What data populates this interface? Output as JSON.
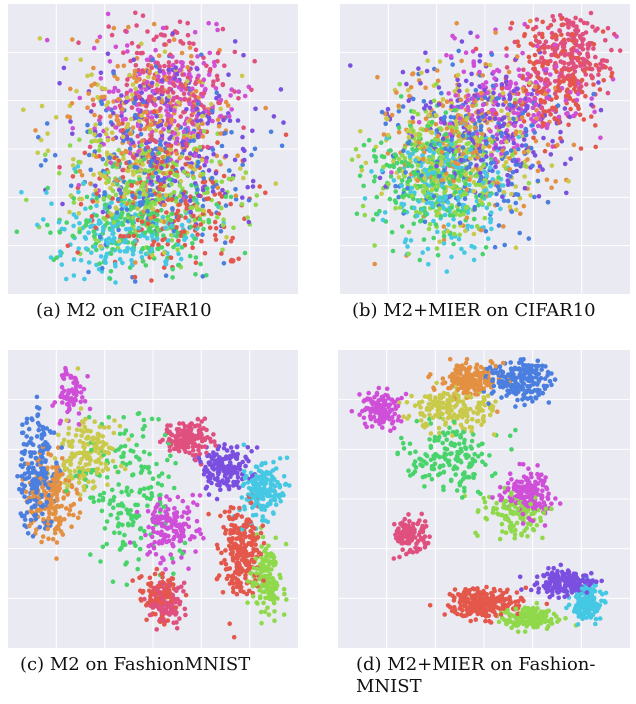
{
  "figure": {
    "background_panel_color": "#eaeaf2",
    "palette": [
      "#e4574b",
      "#e39042",
      "#c9c94a",
      "#8fd94a",
      "#48d46a",
      "#46d6b0",
      "#44c8e3",
      "#4a7fe0",
      "#7b4fe0",
      "#cf4fd8",
      "#e0507e"
    ]
  },
  "captions": {
    "a": "(a) M2 on CIFAR10",
    "b": "(b) M2+MIER on CIFAR10",
    "c": "(c) M2 on FashionMNIST",
    "d": "(d) M2+MIER on Fashion-\nMNIST"
  },
  "chart_data": [
    {
      "type": "scatter",
      "title": "",
      "xlabel": "",
      "ylabel": "",
      "grid": true,
      "legend": "none",
      "point_count_estimate": 2000,
      "clusters": [
        {
          "color_index": 0,
          "center": [
            0.55,
            0.7
          ],
          "spread": [
            0.3,
            0.25
          ],
          "weight": 1
        },
        {
          "color_index": 1,
          "center": [
            0.5,
            0.4
          ],
          "spread": [
            0.28,
            0.3
          ],
          "weight": 1
        },
        {
          "color_index": 2,
          "center": [
            0.45,
            0.5
          ],
          "spread": [
            0.3,
            0.3
          ],
          "weight": 1
        },
        {
          "color_index": 3,
          "center": [
            0.5,
            0.65
          ],
          "spread": [
            0.3,
            0.22
          ],
          "weight": 1
        },
        {
          "color_index": 4,
          "center": [
            0.45,
            0.75
          ],
          "spread": [
            0.28,
            0.18
          ],
          "weight": 1
        },
        {
          "color_index": 6,
          "center": [
            0.4,
            0.78
          ],
          "spread": [
            0.25,
            0.15
          ],
          "weight": 1
        },
        {
          "color_index": 7,
          "center": [
            0.5,
            0.55
          ],
          "spread": [
            0.3,
            0.3
          ],
          "weight": 1
        },
        {
          "color_index": 8,
          "center": [
            0.55,
            0.45
          ],
          "spread": [
            0.28,
            0.3
          ],
          "weight": 1
        },
        {
          "color_index": 9,
          "center": [
            0.55,
            0.35
          ],
          "spread": [
            0.25,
            0.3
          ],
          "weight": 1
        },
        {
          "color_index": 10,
          "center": [
            0.55,
            0.3
          ],
          "spread": [
            0.22,
            0.25
          ],
          "weight": 1
        }
      ]
    },
    {
      "type": "scatter",
      "title": "",
      "xlabel": "",
      "ylabel": "",
      "grid": true,
      "legend": "none",
      "point_count_estimate": 2000,
      "clusters": [
        {
          "color_index": 0,
          "center": [
            0.75,
            0.25
          ],
          "spread": [
            0.18,
            0.2
          ],
          "weight": 1
        },
        {
          "color_index": 10,
          "center": [
            0.78,
            0.18
          ],
          "spread": [
            0.15,
            0.15
          ],
          "weight": 1
        },
        {
          "color_index": 1,
          "center": [
            0.45,
            0.45
          ],
          "spread": [
            0.28,
            0.28
          ],
          "weight": 1
        },
        {
          "color_index": 2,
          "center": [
            0.4,
            0.5
          ],
          "spread": [
            0.28,
            0.25
          ],
          "weight": 1
        },
        {
          "color_index": 3,
          "center": [
            0.35,
            0.58
          ],
          "spread": [
            0.22,
            0.22
          ],
          "weight": 1
        },
        {
          "color_index": 4,
          "center": [
            0.3,
            0.6
          ],
          "spread": [
            0.2,
            0.22
          ],
          "weight": 1
        },
        {
          "color_index": 6,
          "center": [
            0.38,
            0.65
          ],
          "spread": [
            0.2,
            0.22
          ],
          "weight": 1
        },
        {
          "color_index": 7,
          "center": [
            0.45,
            0.5
          ],
          "spread": [
            0.28,
            0.28
          ],
          "weight": 1
        },
        {
          "color_index": 8,
          "center": [
            0.5,
            0.4
          ],
          "spread": [
            0.28,
            0.25
          ],
          "weight": 1
        },
        {
          "color_index": 9,
          "center": [
            0.6,
            0.35
          ],
          "spread": [
            0.25,
            0.22
          ],
          "weight": 1
        }
      ]
    },
    {
      "type": "scatter",
      "title": "",
      "xlabel": "",
      "ylabel": "",
      "grid": true,
      "legend": "none",
      "point_count_estimate": 2000,
      "clusters": [
        {
          "color_index": 0,
          "center": [
            0.8,
            0.68
          ],
          "spread": [
            0.07,
            0.15
          ],
          "weight": 1.3
        },
        {
          "color_index": 10,
          "center": [
            0.62,
            0.3
          ],
          "spread": [
            0.08,
            0.06
          ],
          "weight": 0.8
        },
        {
          "color_index": 9,
          "center": [
            0.56,
            0.6
          ],
          "spread": [
            0.1,
            0.1
          ],
          "weight": 0.8
        },
        {
          "color_index": 8,
          "center": [
            0.75,
            0.4
          ],
          "spread": [
            0.08,
            0.07
          ],
          "weight": 0.9
        },
        {
          "color_index": 6,
          "center": [
            0.88,
            0.46
          ],
          "spread": [
            0.07,
            0.1
          ],
          "weight": 0.9
        },
        {
          "color_index": 3,
          "center": [
            0.89,
            0.76
          ],
          "spread": [
            0.05,
            0.12
          ],
          "weight": 0.8
        },
        {
          "color_index": 7,
          "center": [
            0.1,
            0.4
          ],
          "spread": [
            0.07,
            0.2
          ],
          "weight": 1.1
        },
        {
          "color_index": 1,
          "center": [
            0.15,
            0.5
          ],
          "spread": [
            0.08,
            0.15
          ],
          "weight": 1.0
        },
        {
          "color_index": 2,
          "center": [
            0.27,
            0.35
          ],
          "spread": [
            0.1,
            0.12
          ],
          "weight": 0.9
        },
        {
          "color_index": 4,
          "center": [
            0.42,
            0.48
          ],
          "spread": [
            0.15,
            0.25
          ],
          "weight": 1.0
        },
        {
          "color_index": 0,
          "center": [
            0.52,
            0.82
          ],
          "spread": [
            0.06,
            0.08
          ],
          "weight": 0.5
        },
        {
          "color_index": 10,
          "center": [
            0.55,
            0.85
          ],
          "spread": [
            0.06,
            0.07
          ],
          "weight": 0.5
        },
        {
          "color_index": 9,
          "center": [
            0.22,
            0.15
          ],
          "spread": [
            0.05,
            0.07
          ],
          "weight": 0.4
        }
      ]
    },
    {
      "type": "scatter",
      "title": "",
      "xlabel": "",
      "ylabel": "",
      "grid": true,
      "legend": "none",
      "point_count_estimate": 2000,
      "clusters": [
        {
          "color_index": 0,
          "center": [
            0.5,
            0.85
          ],
          "spread": [
            0.12,
            0.05
          ],
          "weight": 1.3
        },
        {
          "color_index": 8,
          "center": [
            0.78,
            0.78
          ],
          "spread": [
            0.1,
            0.04
          ],
          "weight": 1.0
        },
        {
          "color_index": 6,
          "center": [
            0.85,
            0.85
          ],
          "spread": [
            0.05,
            0.06
          ],
          "weight": 0.8
        },
        {
          "color_index": 3,
          "center": [
            0.65,
            0.9
          ],
          "spread": [
            0.1,
            0.04
          ],
          "weight": 0.8
        },
        {
          "color_index": 10,
          "center": [
            0.25,
            0.62
          ],
          "spread": [
            0.05,
            0.05
          ],
          "weight": 0.7
        },
        {
          "color_index": 9,
          "center": [
            0.65,
            0.48
          ],
          "spread": [
            0.08,
            0.08
          ],
          "weight": 0.9
        },
        {
          "color_index": 1,
          "center": [
            0.45,
            0.1
          ],
          "spread": [
            0.1,
            0.05
          ],
          "weight": 1.0
        },
        {
          "color_index": 7,
          "center": [
            0.62,
            0.1
          ],
          "spread": [
            0.1,
            0.07
          ],
          "weight": 1.0
        },
        {
          "color_index": 2,
          "center": [
            0.4,
            0.2
          ],
          "spread": [
            0.14,
            0.07
          ],
          "weight": 1.0
        },
        {
          "color_index": 9,
          "center": [
            0.15,
            0.2
          ],
          "spread": [
            0.07,
            0.06
          ],
          "weight": 0.7
        },
        {
          "color_index": 4,
          "center": [
            0.38,
            0.35
          ],
          "spread": [
            0.15,
            0.12
          ],
          "weight": 0.9
        },
        {
          "color_index": 3,
          "center": [
            0.6,
            0.55
          ],
          "spread": [
            0.1,
            0.08
          ],
          "weight": 0.6
        }
      ]
    }
  ]
}
